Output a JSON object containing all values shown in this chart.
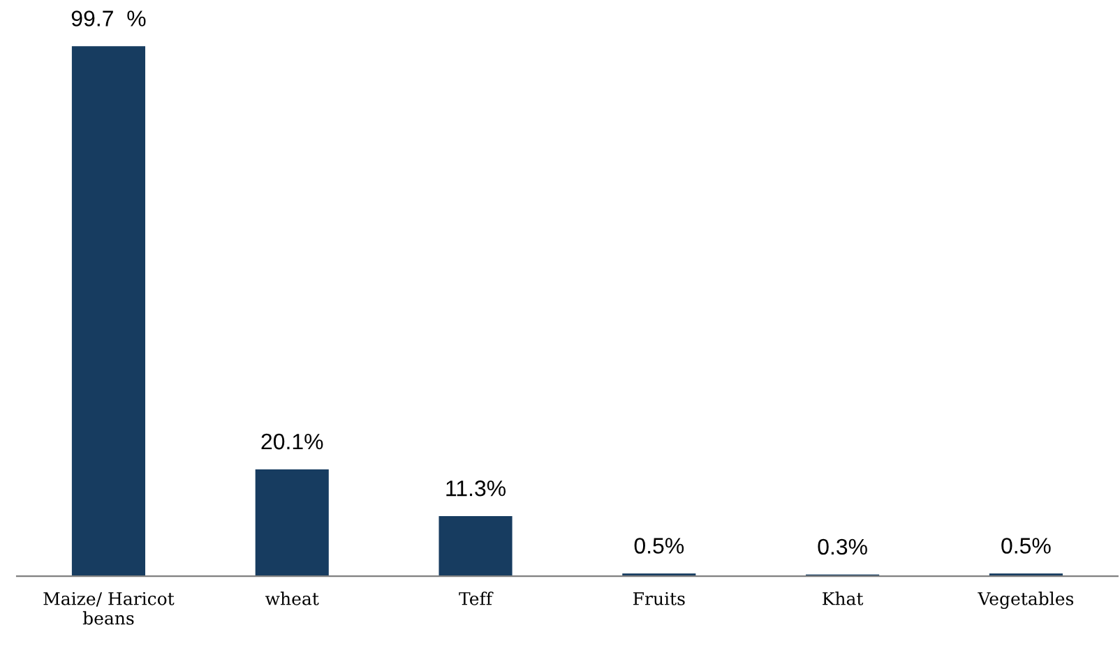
{
  "chart_data": {
    "type": "bar",
    "categories": [
      "Maize/ Haricot\nbeans",
      "wheat",
      "Teff",
      "Fruits",
      "Khat",
      "Vegetables"
    ],
    "values": [
      99.7,
      20.1,
      11.3,
      0.5,
      0.3,
      0.5
    ],
    "value_labels": [
      "99.7  %",
      "20.1%",
      "11.3%",
      "0.5%",
      "0.3%",
      "0.5%"
    ],
    "color": "#173c60",
    "ylim": [
      0,
      100
    ],
    "grid": false,
    "legend": false
  }
}
